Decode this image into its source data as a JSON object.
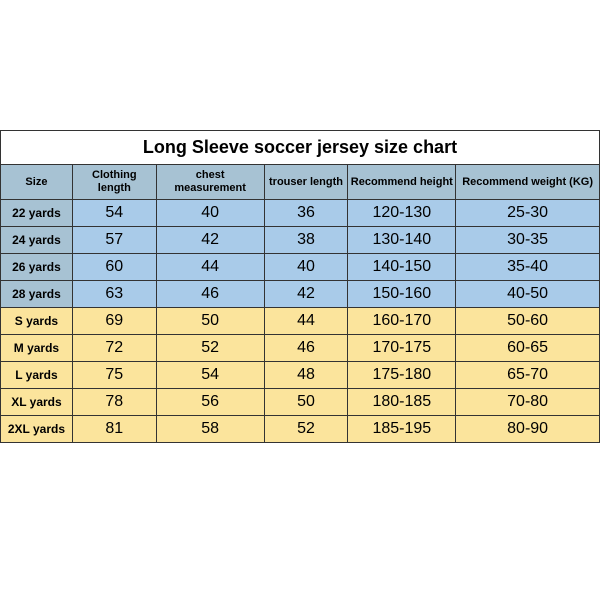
{
  "title": "Long Sleeve soccer jersey size chart",
  "table": {
    "type": "table",
    "columns": [
      {
        "label": "Size",
        "width_pct": 12
      },
      {
        "label": "Clothing length",
        "width_pct": 14
      },
      {
        "label": "chest measurement",
        "width_pct": 18
      },
      {
        "label": "trouser length",
        "width_pct": 14
      },
      {
        "label": "Recommend height",
        "width_pct": 18
      },
      {
        "label": "Recommend weight (KG)",
        "width_pct": 24
      }
    ],
    "rows": [
      {
        "size": "22 yards",
        "clothing_length": "54",
        "chest": "40",
        "trouser": "36",
        "height": "120-130",
        "weight": "25-30",
        "group": "blue"
      },
      {
        "size": "24 yards",
        "clothing_length": "57",
        "chest": "42",
        "trouser": "38",
        "height": "130-140",
        "weight": "30-35",
        "group": "blue"
      },
      {
        "size": "26 yards",
        "clothing_length": "60",
        "chest": "44",
        "trouser": "40",
        "height": "140-150",
        "weight": "35-40",
        "group": "blue"
      },
      {
        "size": "28 yards",
        "clothing_length": "63",
        "chest": "46",
        "trouser": "42",
        "height": "150-160",
        "weight": "40-50",
        "group": "blue"
      },
      {
        "size": "S yards",
        "clothing_length": "69",
        "chest": "50",
        "trouser": "44",
        "height": "160-170",
        "weight": "50-60",
        "group": "yellow"
      },
      {
        "size": "M yards",
        "clothing_length": "72",
        "chest": "52",
        "trouser": "46",
        "height": "170-175",
        "weight": "60-65",
        "group": "yellow"
      },
      {
        "size": "L yards",
        "clothing_length": "75",
        "chest": "54",
        "trouser": "48",
        "height": "175-180",
        "weight": "65-70",
        "group": "yellow"
      },
      {
        "size": "XL yards",
        "clothing_length": "78",
        "chest": "56",
        "trouser": "50",
        "height": "180-185",
        "weight": "70-80",
        "group": "yellow"
      },
      {
        "size": "2XL yards",
        "clothing_length": "81",
        "chest": "58",
        "trouser": "52",
        "height": "185-195",
        "weight": "80-90",
        "group": "yellow"
      }
    ],
    "colors": {
      "header_bg": "#a7c2d3",
      "blue_row_bg": "#a9cbe9",
      "blue_size_bg": "#a7c2d3",
      "yellow_row_bg": "#fbe49c",
      "border": "#333333",
      "text": "#000000",
      "background": "#ffffff"
    },
    "fonts": {
      "title_size_pt": 18,
      "title_weight": "bold",
      "header_size_pt": 11,
      "header_weight": "bold",
      "size_cell_pt": 12,
      "size_cell_weight": "bold",
      "num_cell_pt": 16
    }
  }
}
